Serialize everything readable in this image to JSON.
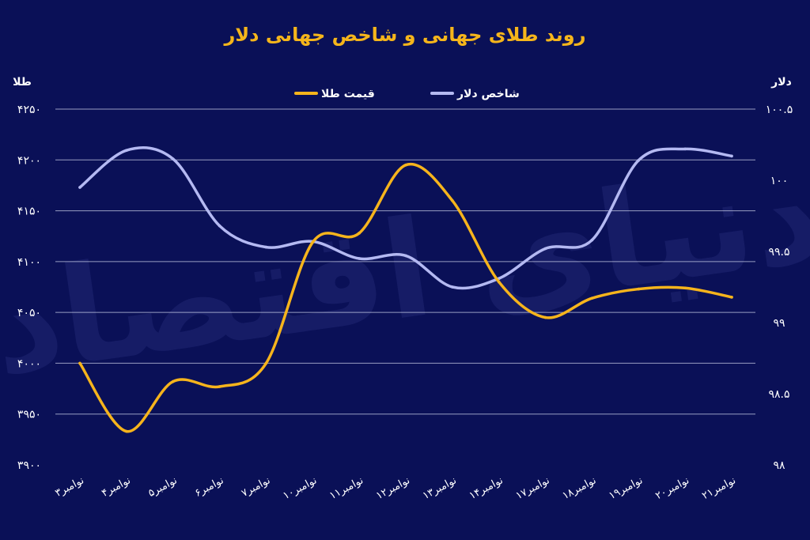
{
  "chart_data": {
    "type": "line",
    "title": "روند طلای جهانی و شاخص جهانی دلار",
    "left_axis_label": "طلا",
    "right_axis_label": "دلار",
    "categories": [
      "۳نوامبر",
      "۴نوامبر",
      "۵نوامبر",
      "۶نوامبر",
      "۷نوامبر",
      "۱۰نوامبر",
      "۱۱نوامبر",
      "۱۲نوامبر",
      "۱۳نوامبر",
      "۱۴نوامبر",
      "۱۷نوامبر",
      "۱۸نوامبر",
      "۱۹نوامبر",
      "۲۰نوامبر",
      "۲۱نوامبر"
    ],
    "left_ylim": [
      3900,
      4250
    ],
    "left_yticks": [
      "۳۹۰۰",
      "۳۹۵۰",
      "۴۰۰۰",
      "۴۰۵۰",
      "۴۱۰۰",
      "۴۱۵۰",
      "۴۲۰۰",
      "۴۲۵۰"
    ],
    "right_ylim": [
      98,
      100.5
    ],
    "right_yticks": [
      "۹۸",
      "۹۸.۵",
      "۹۹",
      "۹۹.۵",
      "۱۰۰",
      "۱۰۰.۵"
    ],
    "grid": true,
    "legend_position": "top",
    "series": [
      {
        "name": "قیمت طلا",
        "axis": "left",
        "color": "#f6b41c",
        "values": [
          4000,
          3933,
          3982,
          3977,
          4000,
          4119,
          4128,
          4195,
          4160,
          4080,
          4045,
          4064,
          4073,
          4074,
          4065
        ]
      },
      {
        "name": "شاخص دلار",
        "axis": "right",
        "color": "#b4b9f2",
        "values": [
          99.95,
          100.21,
          100.15,
          99.68,
          99.53,
          99.57,
          99.45,
          99.47,
          99.25,
          99.31,
          99.52,
          99.58,
          100.14,
          100.22,
          100.17
        ]
      }
    ]
  }
}
